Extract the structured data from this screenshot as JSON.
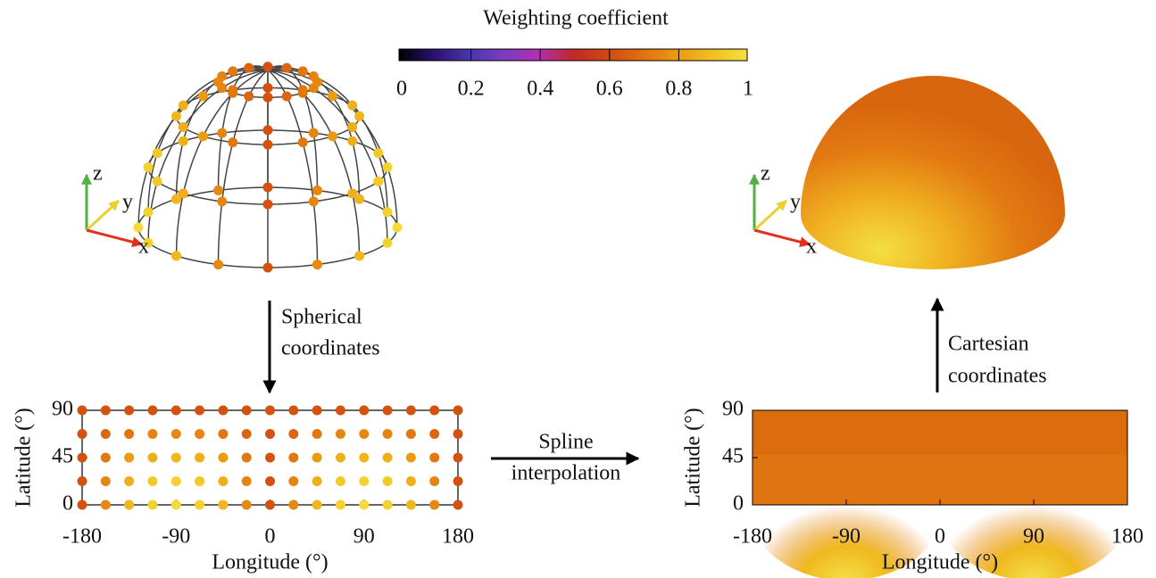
{
  "colorbar": {
    "title": "Weighting coefficient",
    "ticks": [
      0,
      0.2,
      0.4,
      0.6,
      0.8,
      1
    ]
  },
  "sphere_left": {
    "axes": {
      "x": "x",
      "y": "y",
      "z": "z"
    }
  },
  "sphere_right": {
    "axes": {
      "x": "x",
      "y": "y",
      "z": "z"
    }
  },
  "plot_left": {
    "y_label": "Latitude (°)",
    "x_label": "Longitude (°)",
    "yticks": [
      0,
      45,
      90
    ],
    "xticks": [
      -180,
      -90,
      0,
      90,
      180
    ]
  },
  "plot_right": {
    "y_label": "Latitude (°)",
    "x_label": "Longitude (°)",
    "yticks": [
      0,
      45,
      90
    ],
    "xticks": [
      -180,
      -90,
      0,
      90,
      180
    ]
  },
  "arrows": [
    {
      "lines": [
        "Spherical",
        "coordinates"
      ]
    },
    {
      "lines": [
        "Spline",
        "interpolation"
      ]
    },
    {
      "lines": [
        "Cartesian",
        "coordinates"
      ]
    }
  ]
}
